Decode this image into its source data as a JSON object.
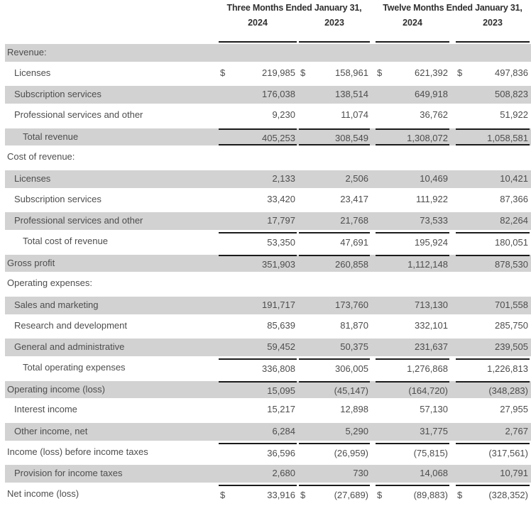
{
  "colors": {
    "row_shade": "#d2d2d2",
    "rule_line": "#1b1b1b",
    "body_text": "#4d4d4d",
    "header_text": "#2f2f2f",
    "background": "#ffffff"
  },
  "header": {
    "period_groups": [
      {
        "label": "Three Months Ended January 31,",
        "years": [
          "2024",
          "2023"
        ]
      },
      {
        "label": "Twelve Months Ended January 31,",
        "years": [
          "2024",
          "2023"
        ]
      }
    ]
  },
  "table": {
    "currency_symbol": "$",
    "columns": [
      "Three Months Ended January 31, 2024",
      "Three Months Ended January 31, 2023",
      "Twelve Months Ended January 31, 2024",
      "Twelve Months Ended January 31, 2023"
    ],
    "rows": [
      {
        "label": "Revenue:",
        "indent": 0,
        "shaded": true,
        "dollar": false,
        "border_top": false,
        "border_bottom": false,
        "values": []
      },
      {
        "label": "Licenses",
        "indent": 1,
        "shaded": false,
        "dollar": true,
        "border_top": false,
        "border_bottom": false,
        "values": [
          "219,985",
          "158,961",
          "621,392",
          "497,836"
        ]
      },
      {
        "label": "Subscription services",
        "indent": 1,
        "shaded": true,
        "dollar": false,
        "border_top": false,
        "border_bottom": false,
        "values": [
          "176,038",
          "138,514",
          "649,918",
          "508,823"
        ]
      },
      {
        "label": "Professional services and other",
        "indent": 1,
        "shaded": false,
        "dollar": false,
        "border_top": false,
        "border_bottom": false,
        "values": [
          "9,230",
          "11,074",
          "36,762",
          "51,922"
        ]
      },
      {
        "label": "Total revenue",
        "indent": 2,
        "shaded": true,
        "dollar": false,
        "border_top": true,
        "border_bottom": true,
        "values": [
          "405,253",
          "308,549",
          "1,308,072",
          "1,058,581"
        ]
      },
      {
        "label": "Cost of revenue:",
        "indent": 0,
        "shaded": false,
        "dollar": false,
        "border_top": false,
        "border_bottom": false,
        "values": []
      },
      {
        "label": "Licenses",
        "indent": 1,
        "shaded": true,
        "dollar": false,
        "border_top": false,
        "border_bottom": false,
        "values": [
          "2,133",
          "2,506",
          "10,469",
          "10,421"
        ]
      },
      {
        "label": "Subscription services",
        "indent": 1,
        "shaded": false,
        "dollar": false,
        "border_top": false,
        "border_bottom": false,
        "values": [
          "33,420",
          "23,417",
          "111,922",
          "87,366"
        ]
      },
      {
        "label": "Professional services and other",
        "indent": 1,
        "shaded": true,
        "dollar": false,
        "border_top": false,
        "border_bottom": false,
        "values": [
          "17,797",
          "21,768",
          "73,533",
          "82,264"
        ]
      },
      {
        "label": "Total cost of revenue",
        "indent": 2,
        "shaded": false,
        "dollar": false,
        "border_top": true,
        "border_bottom": false,
        "values": [
          "53,350",
          "47,691",
          "195,924",
          "180,051"
        ]
      },
      {
        "label": "Gross profit",
        "indent": 0,
        "shaded": true,
        "dollar": false,
        "border_top": true,
        "border_bottom": false,
        "values": [
          "351,903",
          "260,858",
          "1,112,148",
          "878,530"
        ]
      },
      {
        "label": "Operating expenses:",
        "indent": 0,
        "shaded": false,
        "dollar": false,
        "border_top": false,
        "border_bottom": false,
        "values": []
      },
      {
        "label": "Sales and marketing",
        "indent": 1,
        "shaded": true,
        "dollar": false,
        "border_top": false,
        "border_bottom": false,
        "values": [
          "191,717",
          "173,760",
          "713,130",
          "701,558"
        ]
      },
      {
        "label": "Research and development",
        "indent": 1,
        "shaded": false,
        "dollar": false,
        "border_top": false,
        "border_bottom": false,
        "values": [
          "85,639",
          "81,870",
          "332,101",
          "285,750"
        ]
      },
      {
        "label": "General and administrative",
        "indent": 1,
        "shaded": true,
        "dollar": false,
        "border_top": false,
        "border_bottom": false,
        "values": [
          "59,452",
          "50,375",
          "231,637",
          "239,505"
        ]
      },
      {
        "label": "Total operating expenses",
        "indent": 2,
        "shaded": false,
        "dollar": false,
        "border_top": true,
        "border_bottom": false,
        "values": [
          "336,808",
          "306,005",
          "1,276,868",
          "1,226,813"
        ]
      },
      {
        "label": "Operating income (loss)",
        "indent": 0,
        "shaded": true,
        "dollar": false,
        "border_top": true,
        "border_bottom": false,
        "values": [
          "15,095",
          "(45,147)",
          "(164,720)",
          "(348,283)"
        ]
      },
      {
        "label": "Interest income",
        "indent": 1,
        "shaded": false,
        "dollar": false,
        "border_top": false,
        "border_bottom": false,
        "values": [
          "15,217",
          "12,898",
          "57,130",
          "27,955"
        ]
      },
      {
        "label": "Other income, net",
        "indent": 1,
        "shaded": true,
        "dollar": false,
        "border_top": false,
        "border_bottom": false,
        "values": [
          "6,284",
          "5,290",
          "31,775",
          "2,767"
        ]
      },
      {
        "label": "Income (loss) before income taxes",
        "indent": 0,
        "shaded": false,
        "dollar": false,
        "border_top": true,
        "border_bottom": false,
        "values": [
          "36,596",
          "(26,959)",
          "(75,815)",
          "(317,561)"
        ]
      },
      {
        "label": "Provision for income taxes",
        "indent": 1,
        "shaded": true,
        "dollar": false,
        "border_top": false,
        "border_bottom": false,
        "values": [
          "2,680",
          "730",
          "14,068",
          "10,791"
        ]
      },
      {
        "label": "Net income (loss)",
        "indent": 0,
        "shaded": false,
        "dollar": true,
        "border_top": true,
        "border_bottom": false,
        "values": [
          "33,916",
          "(27,689)",
          "(89,883)",
          "(328,352)"
        ]
      }
    ]
  }
}
